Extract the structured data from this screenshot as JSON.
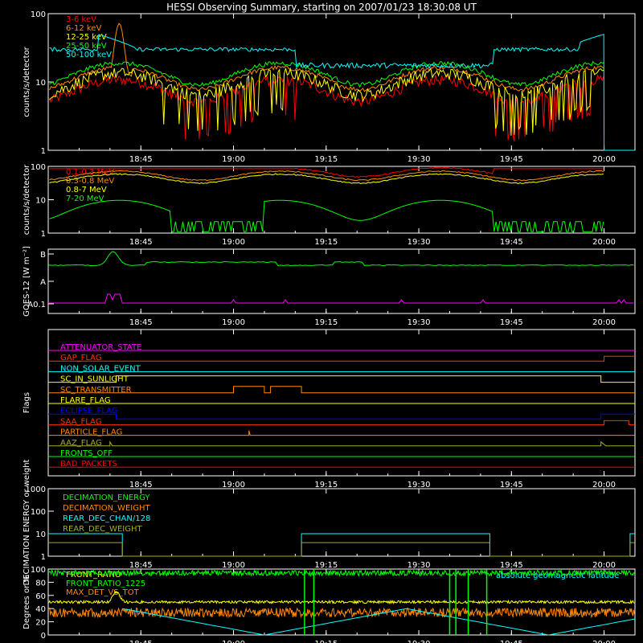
{
  "title": "HESSI Observing Summary, starting on 2007/01/23 18:30:08 UT",
  "time_ticks": [
    "18:45",
    "19:00",
    "19:15",
    "19:30",
    "19:45",
    "20:00"
  ],
  "chart_data": [
    {
      "id": "xray-lightcurves",
      "type": "line",
      "ylabel": "counts/s/detector",
      "yscale": "log",
      "ylim": [
        1,
        100
      ],
      "y_ticks": [
        "1",
        "10",
        "100"
      ],
      "series": [
        {
          "name": "3-6 keV",
          "color": "#ff0000"
        },
        {
          "name": "6-12 keV",
          "color": "#ff8800"
        },
        {
          "name": "12-25 keV",
          "color": "#ffff00"
        },
        {
          "name": "25-50 keV",
          "color": "#00ff00"
        },
        {
          "name": "50-100 keV",
          "color": "#00ffff"
        }
      ]
    },
    {
      "id": "gamma-lightcurves",
      "type": "line",
      "ylabel": "counts/s/detector",
      "yscale": "log",
      "ylim": [
        1,
        100
      ],
      "y_ticks": [
        "1",
        "10",
        "100"
      ],
      "series": [
        {
          "name": "0.1-0.3 MeV",
          "color": "#ff0000"
        },
        {
          "name": "0.3-0.8 MeV",
          "color": "#ff8800"
        },
        {
          "name": "0.8-7 MeV",
          "color": "#ffff00"
        },
        {
          "name": "7-20 MeV",
          "color": "#00ff00"
        }
      ]
    },
    {
      "id": "goes",
      "type": "line",
      "ylabel": "GOES-12 [W m⁻²]",
      "y_ticks": [
        "B",
        "A",
        "A0.1"
      ],
      "series": [
        {
          "color": "#00ff00"
        },
        {
          "color": "#ff00ff"
        }
      ]
    },
    {
      "id": "flags",
      "type": "line",
      "ylabel": "Flags",
      "series": [
        {
          "name": "ATTENUATOR_STATE",
          "color": "#ff00ff"
        },
        {
          "name": "GAP_FLAG",
          "color": "#ff3300"
        },
        {
          "name": "NON_SOLAR_EVENT",
          "color": "#00ffff"
        },
        {
          "name": "SC_IN_SUNLIGHT",
          "color": "#ffff00"
        },
        {
          "name": "SC_TRANSMITTER",
          "color": "#ff8800"
        },
        {
          "name": "FLARE_FLAG",
          "color": "#ffff00"
        },
        {
          "name": "ECLIPSE_FLAG",
          "color": "#0000ff"
        },
        {
          "name": "SAA_FLAG",
          "color": "#ff3300"
        },
        {
          "name": "PARTICLE_FLAG",
          "color": "#ff8800"
        },
        {
          "name": "AAZ_FLAG",
          "color": "#aaaa22"
        },
        {
          "name": "FRONTS_OFF",
          "color": "#00ff00"
        },
        {
          "name": "BAD_PACKETS",
          "color": "#ff0000"
        }
      ]
    },
    {
      "id": "decimation",
      "type": "line",
      "ylabel": "DECIMATION ENERGY or weight",
      "yscale": "log",
      "ylim": [
        1,
        1000
      ],
      "y_ticks": [
        "1",
        "10",
        "100",
        "1000"
      ],
      "series": [
        {
          "name": "DECIMATION_ENERGY",
          "color": "#00ff00"
        },
        {
          "name": "DECIMATION_WEIGHT",
          "color": "#ff8800"
        },
        {
          "name": "REAR_DEC_CHAN/128",
          "color": "#00ffff"
        },
        {
          "name": "REAR_DEC_WEIGHT",
          "color": "#aaaa22"
        }
      ]
    },
    {
      "id": "ratios",
      "type": "line",
      "ylabel": "Degrees or %",
      "ylim": [
        0,
        100
      ],
      "y_ticks": [
        "0",
        "20",
        "40",
        "60",
        "80",
        "100"
      ],
      "series": [
        {
          "name": "FRONT_RATIO",
          "color": "#ffff00"
        },
        {
          "name": "FRONT_RATIO_1225",
          "color": "#00ff00"
        },
        {
          "name": "MAX_DET_VS_TOT",
          "color": "#ff8800"
        },
        {
          "name": "absolute geomagnetic latitude",
          "color": "#00ffff"
        }
      ]
    }
  ]
}
